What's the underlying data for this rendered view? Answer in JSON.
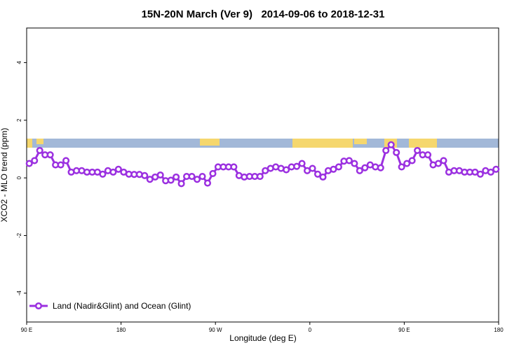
{
  "chart_data": {
    "type": "line",
    "title": "15N-20N March (Ver 9)   2014-09-06 to 2018-12-31",
    "x_label": "Longitude (deg E)",
    "y_label": "XCO2 - MLO trend (ppm)",
    "xlim": [
      90,
      540
    ],
    "xticks": [
      {
        "value": 90,
        "label": "90 E"
      },
      180,
      {
        "value": 270,
        "label": "90 W"
      },
      {
        "value": 360,
        "label": "0"
      },
      {
        "value": 450,
        "label": "90 E"
      },
      {
        "value": 540,
        "label": "180"
      }
    ],
    "ylim": [
      -5,
      5.2
    ],
    "yticks": [
      -4,
      -2,
      0,
      2,
      4
    ],
    "x": [
      92.5,
      97.5,
      102.5,
      107.5,
      112.5,
      117.5,
      122.5,
      127.5,
      132.5,
      137.5,
      142.5,
      147.5,
      152.5,
      157.5,
      162.5,
      167.5,
      172.5,
      177.5,
      182.5,
      187.5,
      192.5,
      197.5,
      202.5,
      207.5,
      212.5,
      217.5,
      222.5,
      227.5,
      232.5,
      237.5,
      242.5,
      247.5,
      252.5,
      257.5,
      262.5,
      267.5,
      272.5,
      277.5,
      282.5,
      287.5,
      292.5,
      297.5,
      302.5,
      307.5,
      312.5,
      317.5,
      322.5,
      327.5,
      332.5,
      337.5,
      342.5,
      347.5,
      352.5,
      357.5,
      362.5,
      367.5,
      372.5,
      377.5,
      382.5,
      387.5,
      392.5,
      397.5,
      402.5,
      407.5,
      412.5,
      417.5,
      422.5,
      427.5,
      432.5,
      437.5,
      442.5,
      447.5,
      452.5,
      457.5,
      462.5,
      467.5,
      472.5,
      477.5,
      482.5,
      487.5,
      492.5,
      497.5,
      502.5,
      507.5,
      512.5,
      517.5,
      522.5,
      527.5,
      532.5,
      537.5
    ],
    "series": [
      {
        "name": "Land (Nadir&Glint) and Ocean (Glint)",
        "color": "#9b30e0",
        "values": [
          0.5,
          0.6,
          0.95,
          0.8,
          0.8,
          0.45,
          0.45,
          0.6,
          0.2,
          0.25,
          0.25,
          0.2,
          0.2,
          0.2,
          0.13,
          0.25,
          0.2,
          0.3,
          0.2,
          0.13,
          0.12,
          0.12,
          0.08,
          -0.05,
          0.03,
          0.1,
          -0.1,
          -0.08,
          0.03,
          -0.2,
          0.05,
          0.05,
          -0.05,
          0.05,
          -0.18,
          0.15,
          0.38,
          0.38,
          0.38,
          0.38,
          0.08,
          0.03,
          0.05,
          0.05,
          0.05,
          0.25,
          0.33,
          0.38,
          0.33,
          0.28,
          0.38,
          0.4,
          0.5,
          0.25,
          0.33,
          0.13,
          0.03,
          0.25,
          0.3,
          0.38,
          0.58,
          0.6,
          0.5,
          0.25,
          0.35,
          0.45,
          0.38,
          0.35,
          0.95,
          1.15,
          0.88,
          0.38,
          0.5,
          0.6,
          0.95,
          0.8,
          0.8,
          0.45,
          0.5,
          0.6,
          0.2,
          0.25,
          0.25,
          0.2,
          0.2,
          0.2,
          0.13,
          0.25,
          0.2,
          0.3
        ]
      }
    ],
    "legend": "bottom-left"
  }
}
